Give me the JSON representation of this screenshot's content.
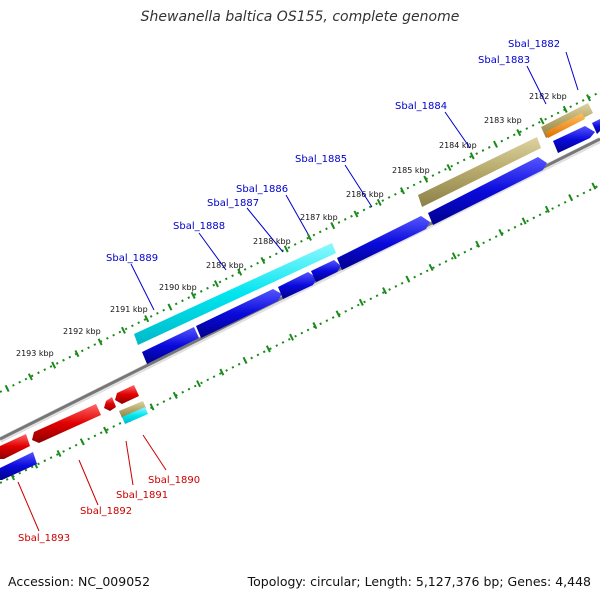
{
  "title": "Shewanella baltica OS155, complete genome",
  "footer": {
    "accession": "Accession: NC_009052",
    "summary": "Topology: circular; Length: 5,127,376 bp; Genes: 4,448"
  },
  "colors": {
    "forward_cds": "#0a0adc",
    "reverse_cds": "#e00000",
    "highlight_cyan": "#00e5ee",
    "highlight_khaki": "#b5a86a",
    "highlight_orange": "#ff8c00",
    "backbone": "#777777",
    "tick_dots": "#1a8a1a",
    "forward_label": "#0000cc",
    "reverse_label": "#cc0000"
  },
  "kbp_labels": [
    "2182 kbp",
    "2183 kbp",
    "2184 kbp",
    "2185 kbp",
    "2186 kbp",
    "2187 kbp",
    "2188 kbp",
    "2189 kbp",
    "2190 kbp",
    "2191 kbp",
    "2192 kbp",
    "2193 kbp"
  ],
  "forward_genes": [
    "Sbal_1882",
    "Sbal_1883",
    "Sbal_1884",
    "Sbal_1885",
    "Sbal_1886",
    "Sbal_1887",
    "Sbal_1888",
    "Sbal_1889"
  ],
  "reverse_genes": [
    "Sbal_1890",
    "Sbal_1891",
    "Sbal_1892",
    "Sbal_1893"
  ]
}
